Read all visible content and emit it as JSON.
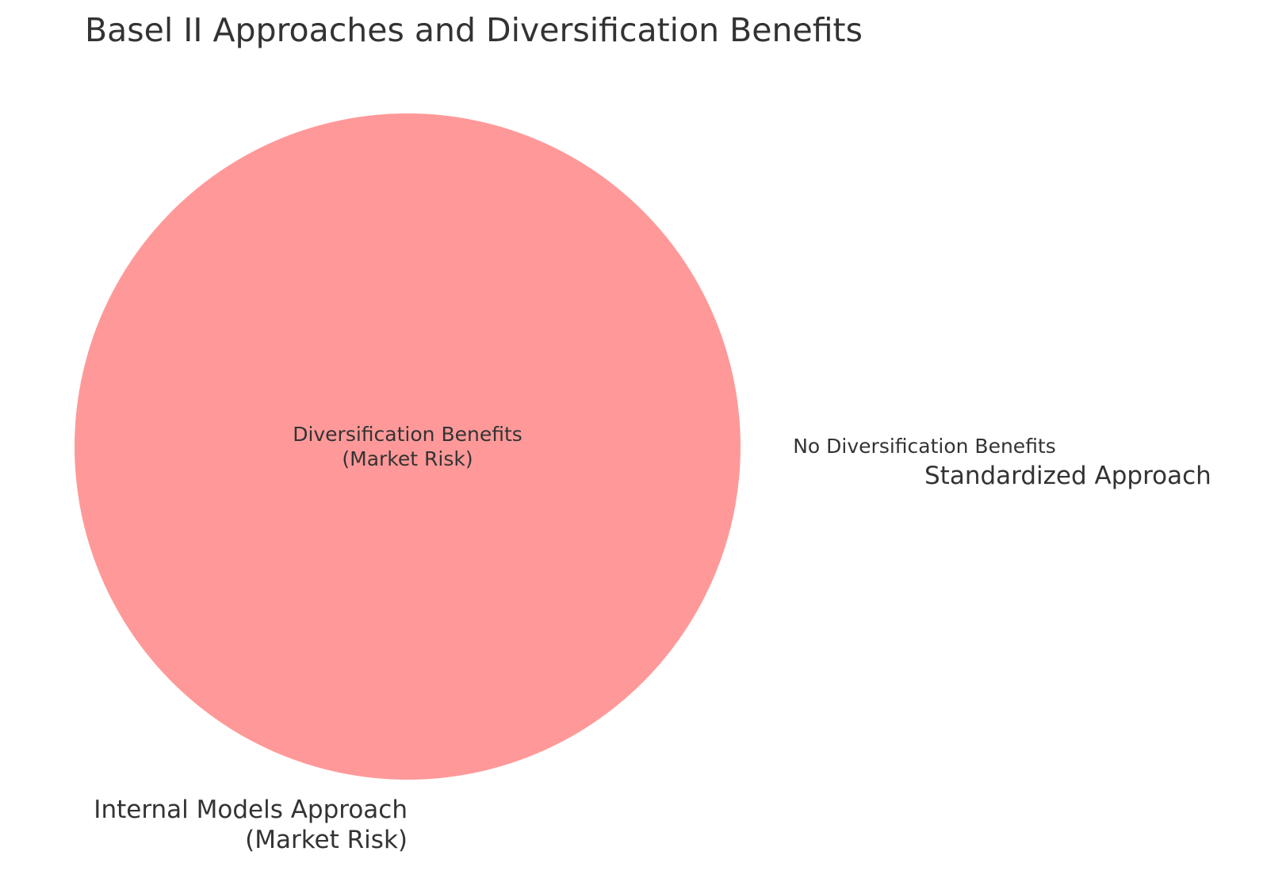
{
  "title": "Basel II Approaches and Diversification Benefits",
  "colors": {
    "set_a_fill": "#ff9999",
    "text": "#333333"
  },
  "sets": [
    {
      "name_lines": [
        "Internal Models Approach",
        "(Market Risk)"
      ],
      "region_label_lines": [
        "Diversification Benefits",
        "(Market Risk)"
      ],
      "size": 1
    },
    {
      "name_lines": [
        "Standardized Approach"
      ],
      "region_label_lines": [
        "No Diversification Benefits"
      ],
      "size": 0
    }
  ]
}
